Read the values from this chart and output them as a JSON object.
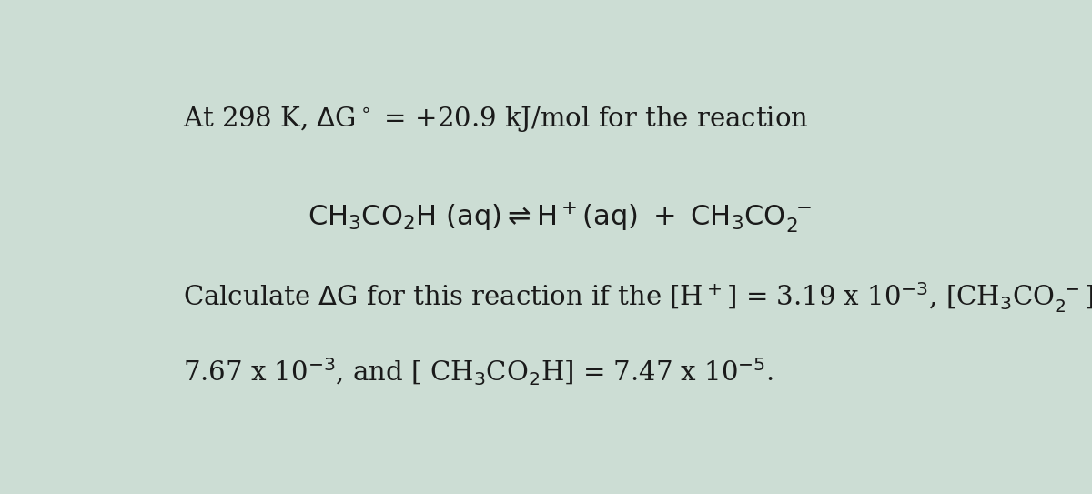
{
  "background_color": "#ccddd4",
  "fig_width": 12.0,
  "fig_height": 5.43,
  "font_size_main": 21,
  "text_color": "#1a1a1a"
}
